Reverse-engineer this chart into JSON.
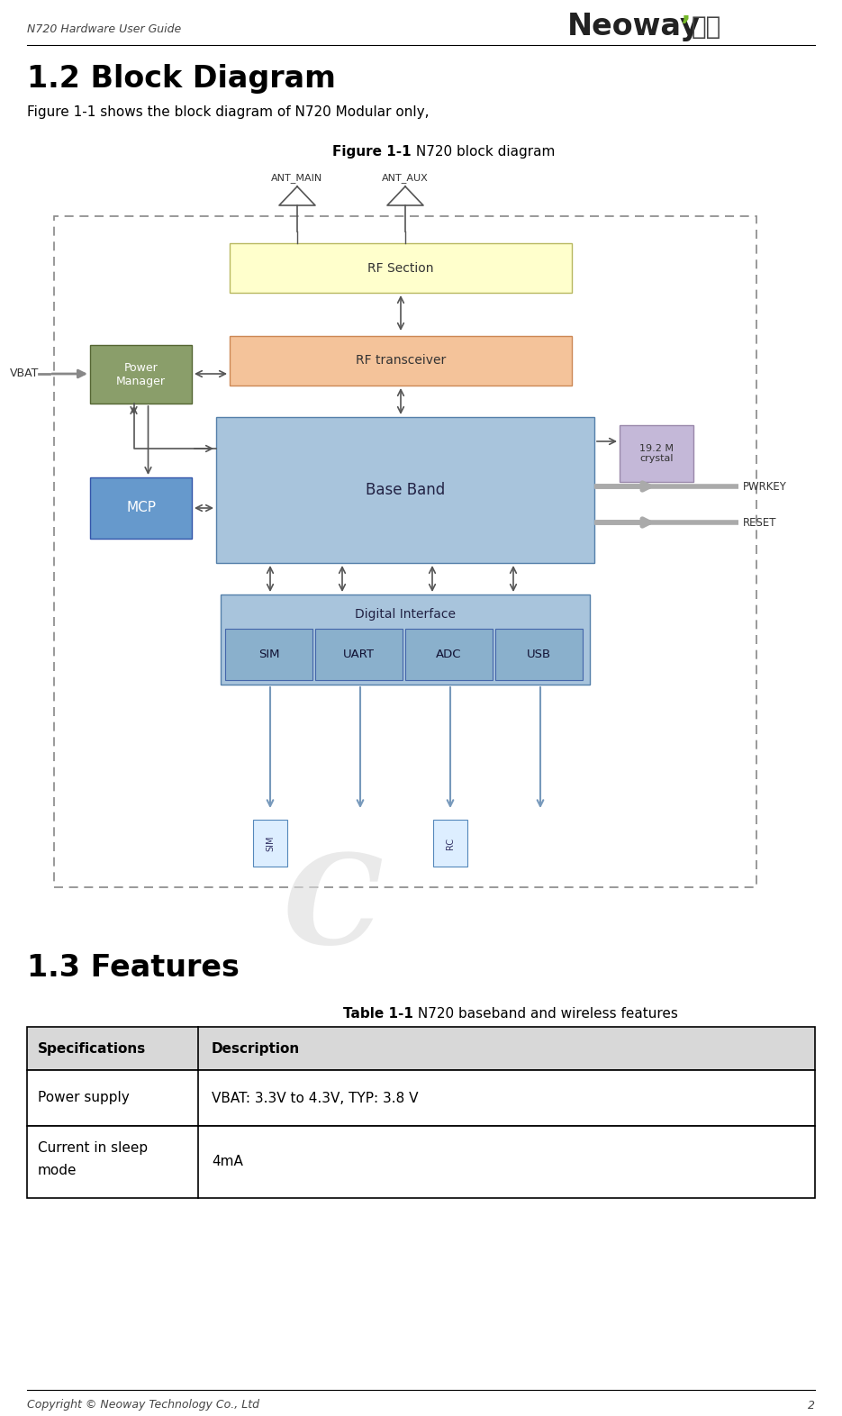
{
  "page_title": "N720 Hardware User Guide",
  "section_title": "1.2 Block Diagram",
  "section_body": "Figure 1-1 shows the block diagram of N720 Modular only,",
  "figure_caption_bold": "Figure 1-1",
  "figure_caption_normal": " N720 block diagram",
  "section2_title": "1.3 Features",
  "table_caption_bold": "Table 1-1",
  "table_caption_normal": " N720 baseband and wireless features",
  "table_headers": [
    "Specifications",
    "Description"
  ],
  "table_rows": [
    [
      "Power supply",
      "VBAT: 3.3V to 4.3V, TYP: 3.8 V"
    ],
    [
      "Current in sleep\nmode",
      "4mA"
    ]
  ],
  "footer_text": "Copyright © Neoway Technology Co., Ltd",
  "footer_page": "2",
  "bg_color": "#ffffff",
  "block_colors": {
    "rf_section": "#ffffcc",
    "rf_transceiver": "#f4c39a",
    "base_band": "#a8c4dc",
    "digital_interface": "#a8c4dc",
    "sub_boxes": "#8ab0cc",
    "power_manager": "#8a9e6a",
    "mcp": "#6699cc",
    "crystal": "#c4b8d8"
  }
}
